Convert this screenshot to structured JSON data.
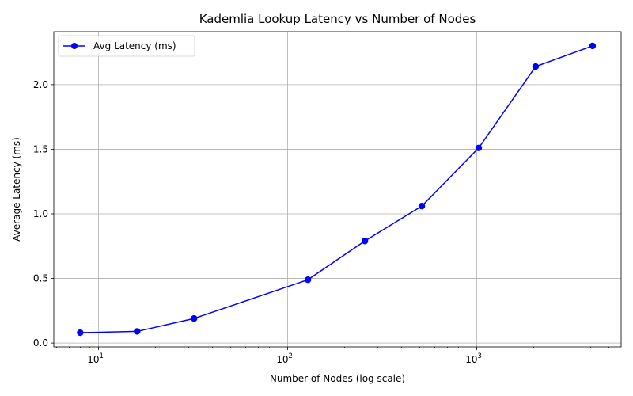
{
  "chart_data": {
    "type": "line",
    "title": "Kademlia Lookup Latency vs Number of Nodes",
    "xlabel": "Number of Nodes (log scale)",
    "ylabel": "Average Latency (ms)",
    "xscale": "log",
    "xlim": [
      5.8,
      5800
    ],
    "ylim": [
      -0.03,
      2.41
    ],
    "grid": true,
    "legend_position": "top-left",
    "x_major_ticks": [
      10,
      100,
      1000
    ],
    "x_tick_labels": [
      {
        "base": "10",
        "exp": "1"
      },
      {
        "base": "10",
        "exp": "2"
      },
      {
        "base": "10",
        "exp": "3"
      }
    ],
    "y_ticks": [
      0.0,
      0.5,
      1.0,
      1.5,
      2.0
    ],
    "y_tick_labels": [
      "0.0",
      "0.5",
      "1.0",
      "1.5",
      "2.0"
    ],
    "series": [
      {
        "name": "Avg Latency (ms)",
        "color": "#0000ff",
        "marker": "circle",
        "x": [
          8,
          16,
          32,
          128,
          256,
          512,
          1024,
          2048,
          4096
        ],
        "y": [
          0.08,
          0.09,
          0.19,
          0.49,
          0.79,
          1.06,
          1.51,
          2.14,
          2.3
        ]
      }
    ]
  }
}
